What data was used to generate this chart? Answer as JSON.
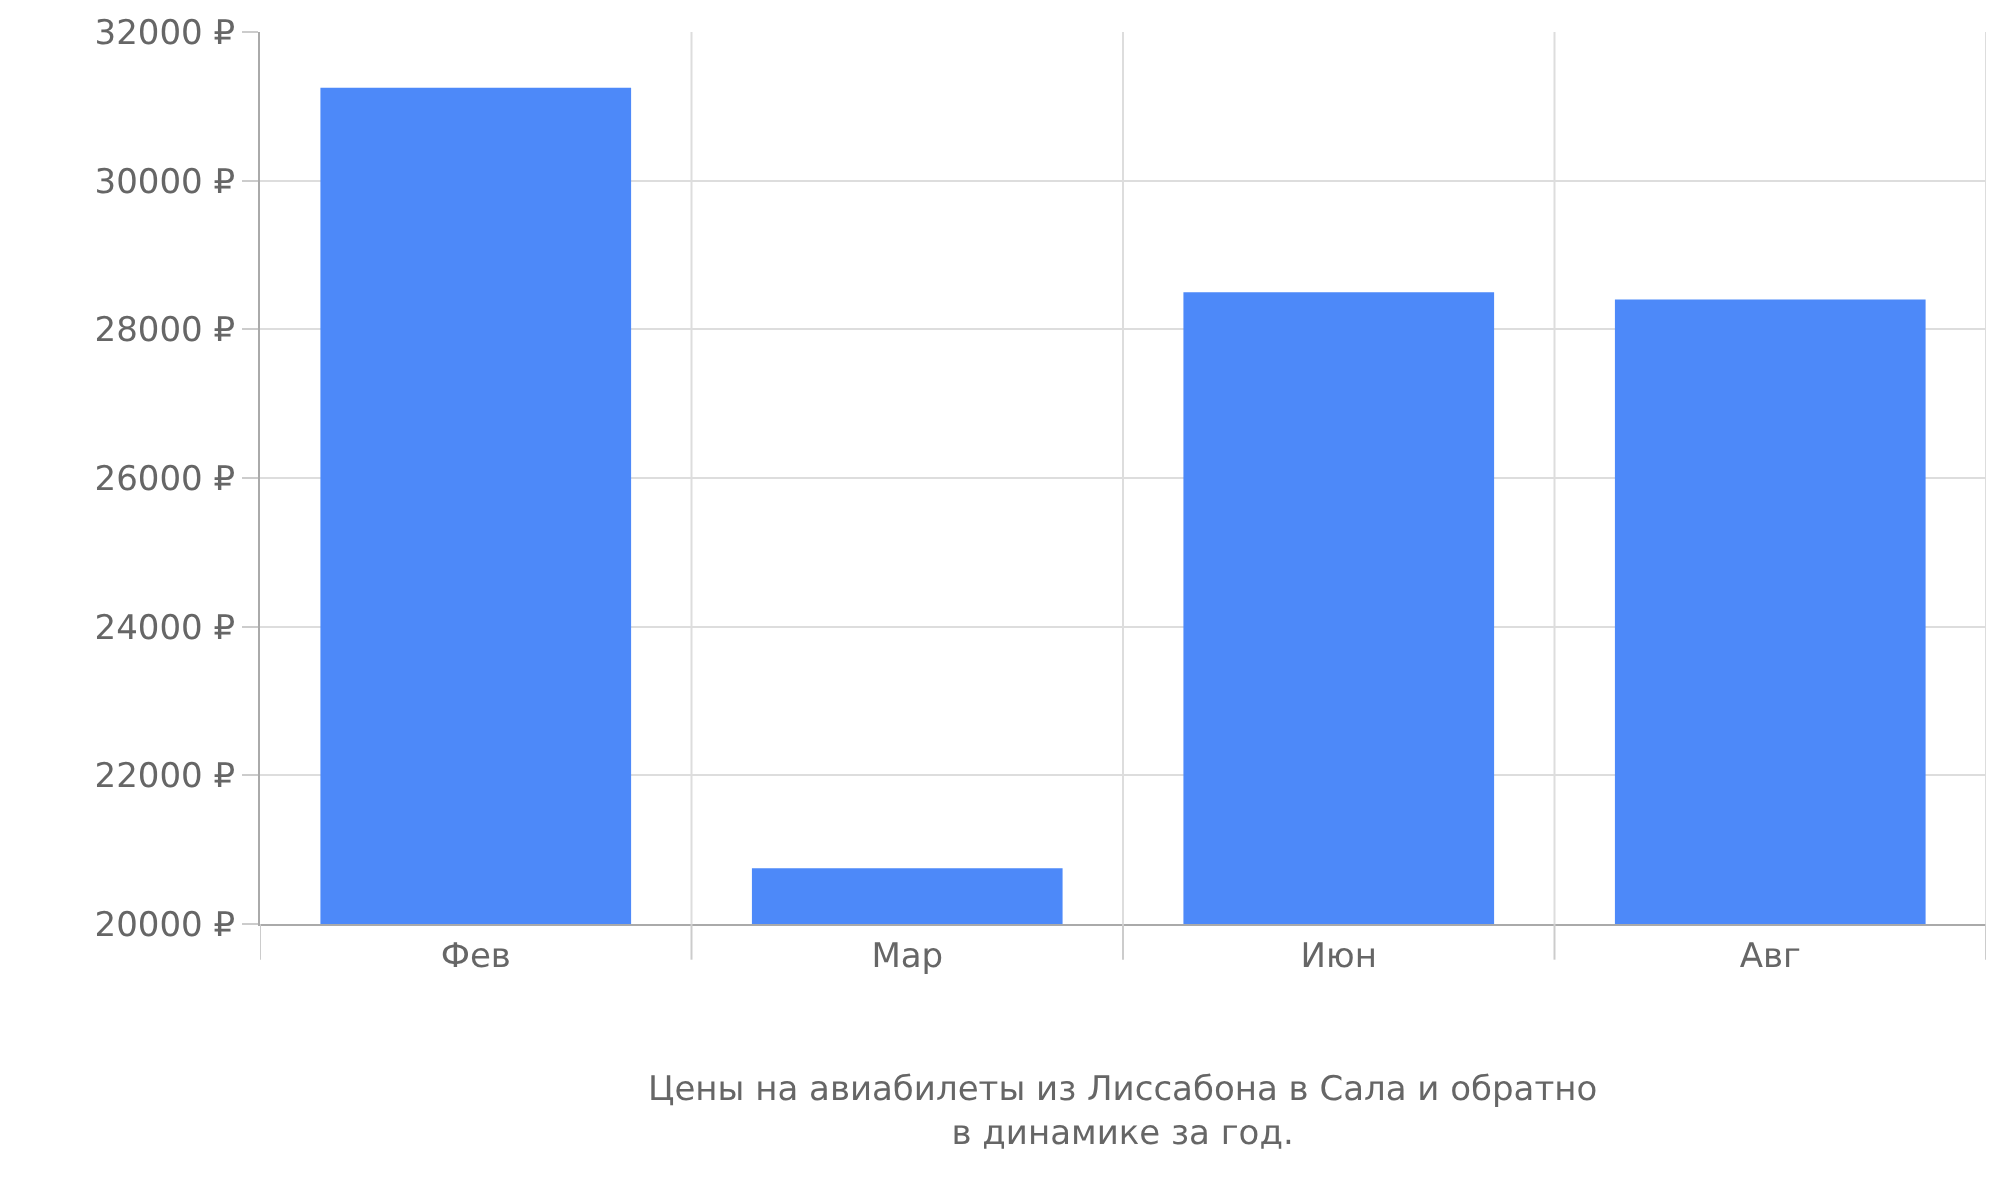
{
  "chart_data": {
    "type": "bar",
    "categories": [
      "Фев",
      "Мар",
      "Июн",
      "Авг"
    ],
    "values": [
      31250,
      20750,
      28500,
      28400
    ],
    "color": "#4d89f9",
    "ylim": [
      20000,
      32000
    ],
    "yticks": [
      {
        "value": 20000,
        "label": "20000 ₽"
      },
      {
        "value": 22000,
        "label": "22000 ₽"
      },
      {
        "value": 24000,
        "label": "24000 ₽"
      },
      {
        "value": 26000,
        "label": "26000 ₽"
      },
      {
        "value": 28000,
        "label": "28000 ₽"
      },
      {
        "value": 30000,
        "label": "30000 ₽"
      },
      {
        "value": 32000,
        "label": "32000 ₽"
      }
    ],
    "grid": true,
    "annotations": [
      "Цены на авиабилеты из Лиссабона в Сала и обратно\nв динамике за год."
    ]
  }
}
